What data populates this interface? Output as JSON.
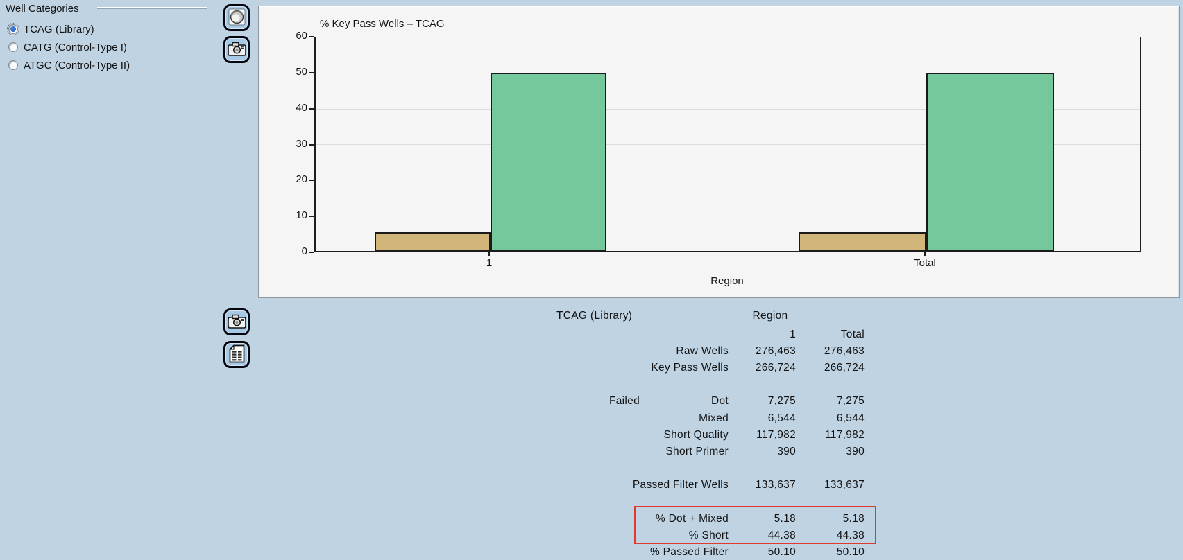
{
  "app": {
    "background_color": "#bfd3e3"
  },
  "sidebar": {
    "title": "Well Categories",
    "options": [
      {
        "label": "TCAG (Library)",
        "selected": true
      },
      {
        "label": "CATG (Control-Type I)",
        "selected": false
      },
      {
        "label": "ATGC (Control-Type II)",
        "selected": false
      }
    ]
  },
  "toolbar": {
    "chart_buttons": [
      {
        "icon": "wells-image-icon"
      },
      {
        "icon": "camera-icon"
      }
    ],
    "table_buttons": [
      {
        "icon": "camera-icon"
      },
      {
        "icon": "spreadsheet-icon"
      }
    ]
  },
  "chart_data": {
    "type": "bar",
    "title": "% Key Pass Wells – TCAG",
    "xlabel": "Region",
    "ylabel": "",
    "categories": [
      "1",
      "Total"
    ],
    "series": [
      {
        "name": "tan-bar",
        "color": "#d2b679",
        "values": [
          5.18,
          5.18
        ]
      },
      {
        "name": "green-bar",
        "color": "#74c89c",
        "values": [
          50.1,
          50.1
        ]
      }
    ],
    "ylim": [
      0,
      60
    ],
    "yticks": [
      0,
      10,
      20,
      30,
      40,
      50,
      60
    ],
    "grid": true,
    "legend": "none"
  },
  "table": {
    "title": "TCAG (Library)",
    "region_header": "Region",
    "failed_group_label": "Failed",
    "highlight_color": "#e0392e",
    "rows": [
      {
        "label": "",
        "v1": "1",
        "v2": "Total"
      },
      {
        "label": "Raw Wells",
        "v1": "276,463",
        "v2": "276,463"
      },
      {
        "label": "Key Pass Wells",
        "v1": "266,724",
        "v2": "266,724"
      },
      {
        "label": "",
        "v1": "",
        "v2": ""
      },
      {
        "label": "Dot",
        "v1": "7,275",
        "v2": "7,275"
      },
      {
        "label": "Mixed",
        "v1": "6,544",
        "v2": "6,544"
      },
      {
        "label": "Short Quality",
        "v1": "117,982",
        "v2": "117,982"
      },
      {
        "label": "Short Primer",
        "v1": "390",
        "v2": "390"
      },
      {
        "label": "",
        "v1": "",
        "v2": ""
      },
      {
        "label": "Passed Filter Wells",
        "v1": "133,637",
        "v2": "133,637"
      },
      {
        "label": "",
        "v1": "",
        "v2": ""
      },
      {
        "label": "% Dot + Mixed",
        "v1": "5.18",
        "v2": "5.18"
      },
      {
        "label": "% Short",
        "v1": "44.38",
        "v2": "44.38"
      },
      {
        "label": "% Passed Filter",
        "v1": "50.10",
        "v2": "50.10"
      }
    ]
  }
}
